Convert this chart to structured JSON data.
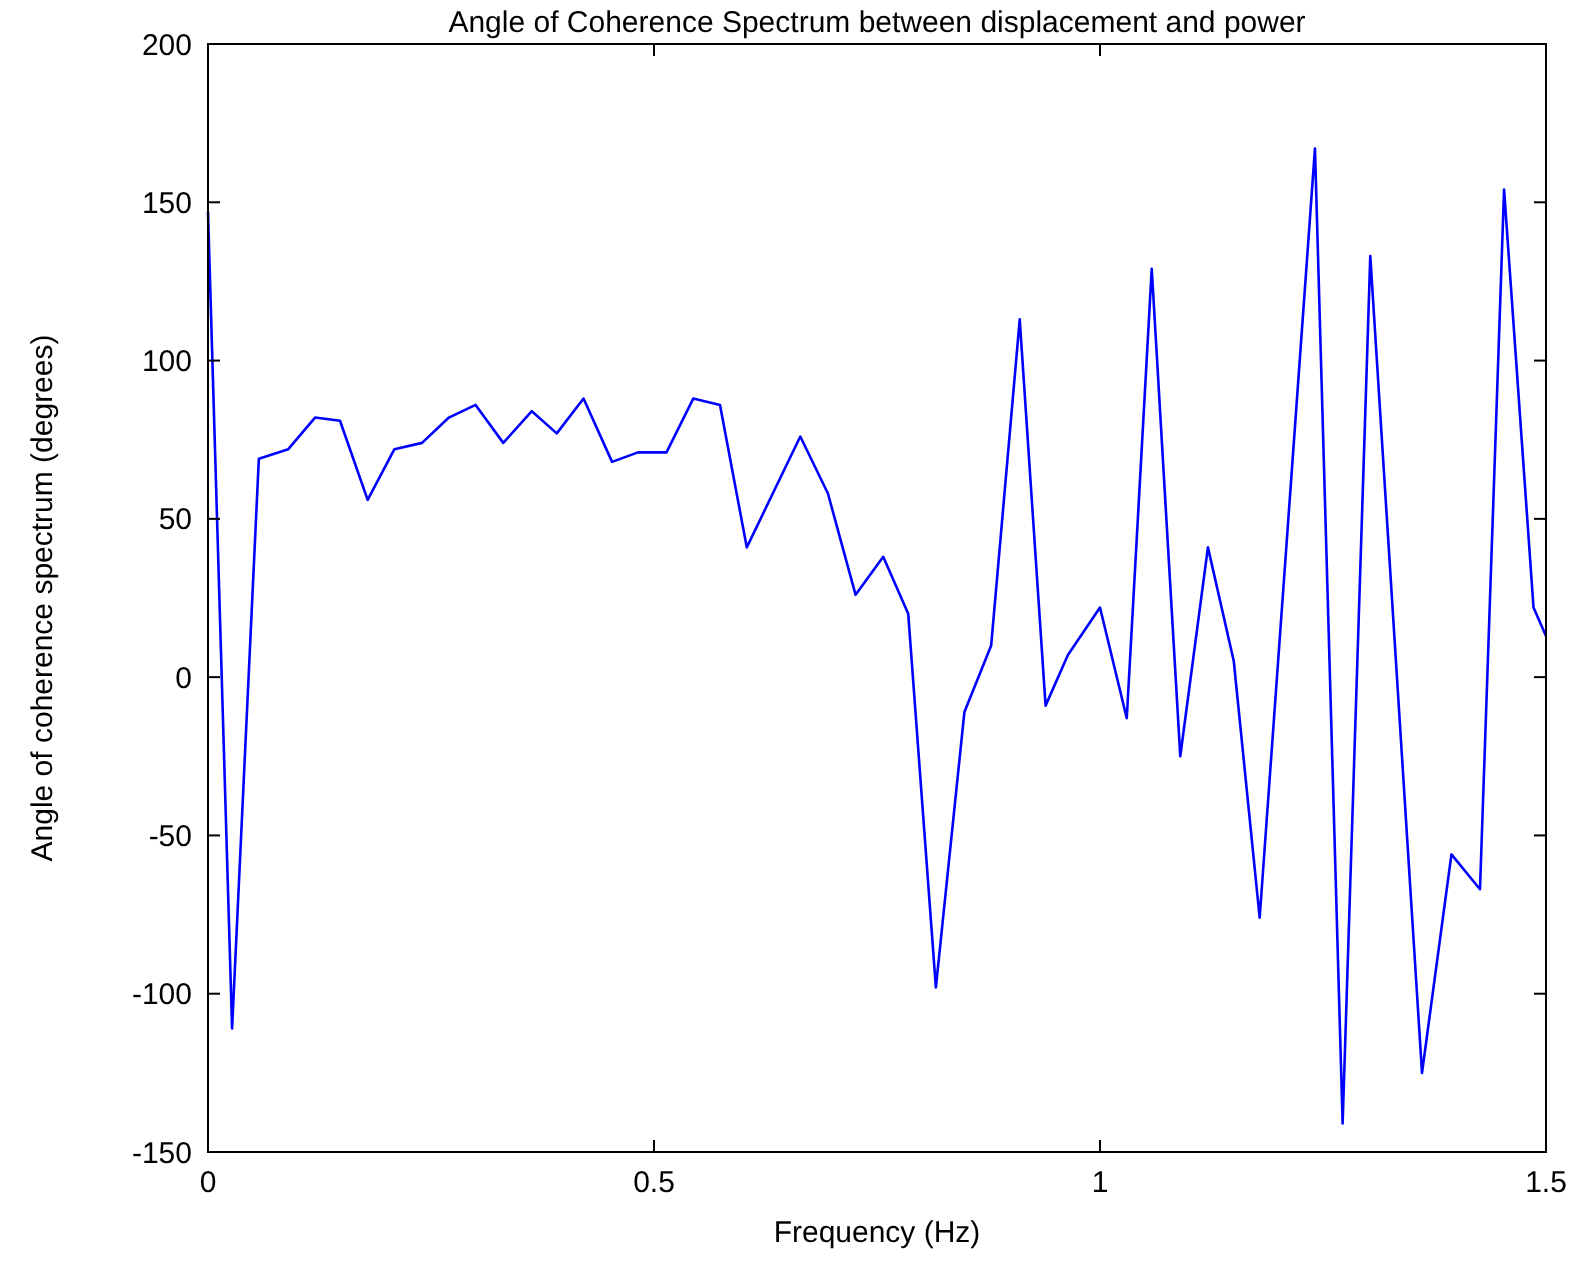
{
  "chart_data": {
    "type": "line",
    "title": "Angle of Coherence Spectrum between displacement and power",
    "xlabel": "Frequency (Hz)",
    "ylabel": "Angle of coherence spectrum (degrees)",
    "x": [
      0,
      0.027,
      0.057,
      0.09,
      0.12,
      0.148,
      0.179,
      0.209,
      0.24,
      0.27,
      0.3,
      0.331,
      0.363,
      0.391,
      0.421,
      0.453,
      0.482,
      0.514,
      0.544,
      0.574,
      0.604,
      0.664,
      0.695,
      0.726,
      0.757,
      0.785,
      0.816,
      0.848,
      0.878,
      0.91,
      0.939,
      0.964,
      1.0,
      1.03,
      1.058,
      1.09,
      1.121,
      1.15,
      1.179,
      1.241,
      1.272,
      1.303,
      1.361,
      1.394,
      1.426,
      1.453,
      1.486,
      1.5
    ],
    "series": [
      {
        "color": "#0000ff",
        "values": [
          147,
          -111,
          69,
          72,
          82,
          81,
          56,
          72,
          74,
          82,
          86,
          74,
          84,
          77,
          88,
          68,
          71,
          71,
          88,
          86,
          41,
          76,
          58,
          26,
          38,
          20,
          -98,
          -11,
          10,
          113,
          -9,
          7,
          22,
          -13,
          129,
          -25,
          41,
          5,
          -76,
          167,
          -141,
          133,
          -125,
          -56,
          -67,
          154,
          22,
          13
        ]
      }
    ],
    "xlim": [
      0,
      1.5
    ],
    "xticks": [
      0,
      0.5,
      1,
      1.5
    ],
    "ylim": [
      -150,
      200
    ],
    "yticks": [
      -150,
      -100,
      -50,
      0,
      50,
      100,
      150,
      200
    ],
    "grid": false,
    "marker": "none",
    "line_style": "solid"
  }
}
